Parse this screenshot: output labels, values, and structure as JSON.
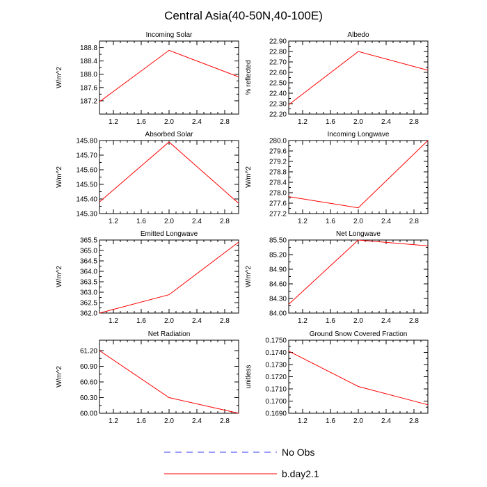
{
  "figure_title": "Central Asia(40-50N,40-100E)",
  "legend": [
    {
      "label": "No Obs",
      "color": "#3a3aff",
      "dashed": true
    },
    {
      "label": "b.day2.1",
      "color": "#ff0000",
      "dashed": false
    }
  ],
  "chart_data": [
    {
      "type": "line",
      "title": "Incoming Solar",
      "ylabel": "W/m^2",
      "xlim": [
        1,
        3
      ],
      "ylim": [
        186.8,
        189.0
      ],
      "xticks": [
        1.2,
        1.6,
        2.0,
        2.4,
        2.8
      ],
      "xtick_labels": [
        "1.2",
        "1.6",
        "2.0",
        "2.4",
        "2.8"
      ],
      "yticks": [
        187.2,
        187.6,
        188.0,
        188.4,
        188.8
      ],
      "ytick_labels": [
        "187.2",
        "187.6",
        "188.0",
        "188.4",
        "188.8"
      ],
      "series": [
        {
          "name": "b.day2.1",
          "x": [
            1,
            2,
            3
          ],
          "y": [
            187.17,
            188.72,
            187.92
          ]
        }
      ]
    },
    {
      "type": "line",
      "title": "Albedo",
      "ylabel": "% reflected",
      "xlim": [
        1,
        3
      ],
      "ylim": [
        22.2,
        22.9
      ],
      "xticks": [
        1.2,
        1.6,
        2.0,
        2.4,
        2.8
      ],
      "xtick_labels": [
        "1.2",
        "1.6",
        "2.0",
        "2.4",
        "2.8"
      ],
      "yticks": [
        22.2,
        22.3,
        22.4,
        22.5,
        22.6,
        22.7,
        22.8,
        22.9
      ],
      "ytick_labels": [
        "22.20",
        "22.30",
        "22.40",
        "22.50",
        "22.60",
        "22.70",
        "22.80",
        "22.90"
      ],
      "series": [
        {
          "name": "b.day2.1",
          "x": [
            1,
            2,
            3
          ],
          "y": [
            22.29,
            22.8,
            22.62
          ]
        }
      ]
    },
    {
      "type": "line",
      "title": "Absorbed Solar",
      "ylabel": "W/m^2",
      "xlim": [
        1,
        3
      ],
      "ylim": [
        145.3,
        145.8
      ],
      "xticks": [
        1.2,
        1.6,
        2.0,
        2.4,
        2.8
      ],
      "xtick_labels": [
        "1.2",
        "1.6",
        "2.0",
        "2.4",
        "2.8"
      ],
      "yticks": [
        145.3,
        145.4,
        145.5,
        145.6,
        145.7,
        145.8
      ],
      "ytick_labels": [
        "145.30",
        "145.40",
        "145.50",
        "145.60",
        "145.70",
        "145.80"
      ],
      "series": [
        {
          "name": "b.day2.1",
          "x": [
            1,
            2,
            3
          ],
          "y": [
            145.38,
            145.79,
            145.37
          ]
        }
      ]
    },
    {
      "type": "line",
      "title": "Incoming Longwave",
      "ylabel": "W/m^2",
      "xlim": [
        1,
        3
      ],
      "ylim": [
        277.2,
        280.0
      ],
      "xticks": [
        1.2,
        1.6,
        2.0,
        2.4,
        2.8
      ],
      "xtick_labels": [
        "1.2",
        "1.6",
        "2.0",
        "2.4",
        "2.8"
      ],
      "yticks": [
        277.2,
        277.6,
        278.0,
        278.4,
        278.8,
        279.2,
        279.6,
        280.0
      ],
      "ytick_labels": [
        "277.2",
        "277.6",
        "278.0",
        "278.4",
        "278.8",
        "279.2",
        "279.6",
        "280.0"
      ],
      "series": [
        {
          "name": "b.day2.1",
          "x": [
            1,
            2,
            3
          ],
          "y": [
            277.85,
            277.42,
            280.0
          ]
        }
      ]
    },
    {
      "type": "line",
      "title": "Emitted Longwave",
      "ylabel": "W/m^2",
      "xlim": [
        1,
        3
      ],
      "ylim": [
        362.0,
        365.5
      ],
      "xticks": [
        1.2,
        1.6,
        2.0,
        2.4,
        2.8
      ],
      "xtick_labels": [
        "1.2",
        "1.6",
        "2.0",
        "2.4",
        "2.8"
      ],
      "yticks": [
        362.0,
        362.5,
        363.0,
        363.5,
        364.0,
        364.5,
        365.0,
        365.5
      ],
      "ytick_labels": [
        "362.0",
        "362.5",
        "363.0",
        "363.5",
        "364.0",
        "364.5",
        "365.0",
        "365.5"
      ],
      "series": [
        {
          "name": "b.day2.1",
          "x": [
            1,
            2,
            3
          ],
          "y": [
            362.0,
            362.88,
            365.4
          ]
        }
      ]
    },
    {
      "type": "line",
      "title": "Net Longwave",
      "ylabel": "W/m^2",
      "xlim": [
        1,
        3
      ],
      "ylim": [
        84.0,
        85.5
      ],
      "xticks": [
        1.2,
        1.6,
        2.0,
        2.4,
        2.8
      ],
      "xtick_labels": [
        "1.2",
        "1.6",
        "2.0",
        "2.4",
        "2.8"
      ],
      "yticks": [
        84.0,
        84.3,
        84.6,
        84.9,
        85.2,
        85.5
      ],
      "ytick_labels": [
        "84.00",
        "84.30",
        "84.60",
        "84.90",
        "85.20",
        "85.50"
      ],
      "series": [
        {
          "name": "b.day2.1",
          "x": [
            1,
            2,
            3
          ],
          "y": [
            84.18,
            85.5,
            85.38
          ]
        }
      ]
    },
    {
      "type": "line",
      "title": "Net Radiation",
      "ylabel": "W/m^2",
      "xlim": [
        1,
        3
      ],
      "ylim": [
        60.0,
        61.4
      ],
      "xticks": [
        1.2,
        1.6,
        2.0,
        2.4,
        2.8
      ],
      "xtick_labels": [
        "1.2",
        "1.6",
        "2.0",
        "2.4",
        "2.8"
      ],
      "yticks": [
        60.0,
        60.3,
        60.6,
        60.9,
        61.2
      ],
      "ytick_labels": [
        "60.00",
        "60.30",
        "60.60",
        "60.90",
        "61.20"
      ],
      "series": [
        {
          "name": "b.day2.1",
          "x": [
            1,
            2,
            3
          ],
          "y": [
            61.2,
            60.3,
            60.0
          ]
        }
      ]
    },
    {
      "type": "line",
      "title": "Ground Snow Covered Fraction",
      "ylabel": "unitless",
      "xlim": [
        1,
        3
      ],
      "ylim": [
        0.169,
        0.175
      ],
      "xticks": [
        1.2,
        1.6,
        2.0,
        2.4,
        2.8
      ],
      "xtick_labels": [
        "1.2",
        "1.6",
        "2.0",
        "2.4",
        "2.8"
      ],
      "yticks": [
        0.169,
        0.17,
        0.171,
        0.172,
        0.173,
        0.174,
        0.175
      ],
      "ytick_labels": [
        "0.1690",
        "0.1700",
        "0.1710",
        "0.1720",
        "0.1730",
        "0.1740",
        "0.1750"
      ],
      "series": [
        {
          "name": "b.day2.1",
          "x": [
            1,
            2,
            3
          ],
          "y": [
            0.1741,
            0.1712,
            0.1697
          ]
        }
      ]
    }
  ]
}
